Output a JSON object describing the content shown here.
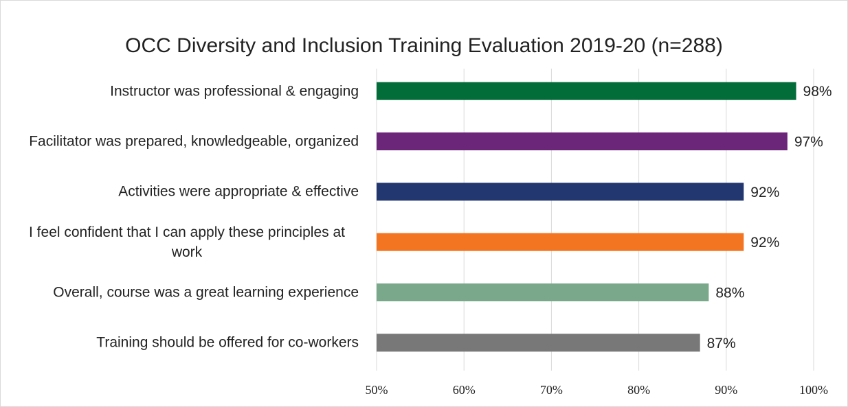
{
  "chart_data": {
    "type": "bar",
    "orientation": "horizontal",
    "title": "OCC Diversity and Inclusion Training Evaluation 2019-20 (n=288)",
    "categories": [
      "Instructor was professional & engaging",
      "Facilitator was prepared, knowledgeable, organized",
      "Activities were appropriate & effective",
      "I feel confident that I can apply these principles at work",
      "Overall, course was a great learning experience",
      "Training should be offered for co-workers"
    ],
    "values": [
      98,
      97,
      92,
      92,
      88,
      87
    ],
    "value_labels": [
      "98%",
      "97%",
      "92%",
      "92%",
      "88%",
      "87%"
    ],
    "colors": [
      "#036d3a",
      "#6b2579",
      "#22366f",
      "#f47521",
      "#79a98a",
      "#787878"
    ],
    "xlim": [
      50,
      100
    ],
    "xticks": [
      {
        "value": 50,
        "label": "50%"
      },
      {
        "value": 60,
        "label": "60%"
      },
      {
        "value": 70,
        "label": "70%"
      },
      {
        "value": 80,
        "label": "80%"
      },
      {
        "value": 90,
        "label": "90%"
      },
      {
        "value": 100,
        "label": "100%"
      }
    ],
    "grid": true
  }
}
